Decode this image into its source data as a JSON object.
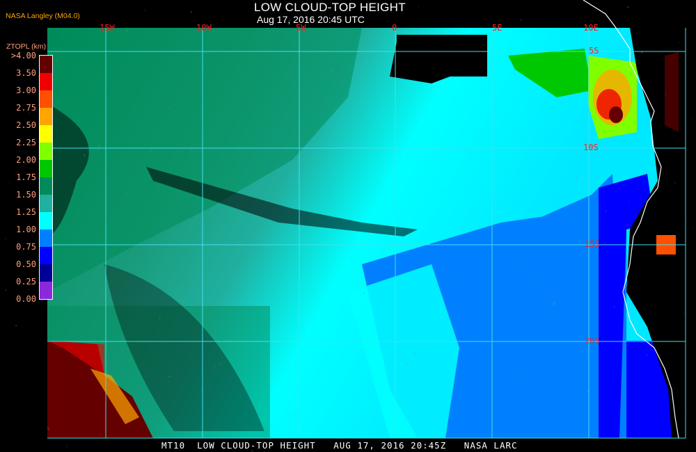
{
  "header": {
    "title": "LOW CLOUD-TOP HEIGHT",
    "subtitle": "Aug 17, 2016 20:45 UTC",
    "agency": "NASA Langley (M04.0)"
  },
  "legend": {
    "title": "ZTOPL (km)",
    "ticks": [
      ">4.00",
      "3.50",
      "3.00",
      "2.75",
      "2.50",
      "2.25",
      "2.00",
      "1.75",
      "1.50",
      "1.25",
      "1.00",
      "0.75",
      "0.50",
      "0.25",
      "0.00"
    ],
    "colors": [
      "#640000",
      "#f00000",
      "#ff5000",
      "#ffa500",
      "#ffff00",
      "#80ff00",
      "#00c800",
      "#008c5a",
      "#20b0a0",
      "#00ffff",
      "#0080ff",
      "#0000ff",
      "#000096",
      "#8c28dc"
    ]
  },
  "grid": {
    "longitude_labels": [
      "15W",
      "10W",
      "5W",
      "0",
      "5E",
      "10E"
    ],
    "latitude_labels": [
      "5S",
      "10S",
      "15S",
      "20S"
    ],
    "line_color": "#40e0f0",
    "label_color": "#ff2020"
  },
  "footer": {
    "text": "MT10  LOW CLOUD-TOP HEIGHT   AUG 17, 2016 20:45Z   NASA LARC"
  }
}
